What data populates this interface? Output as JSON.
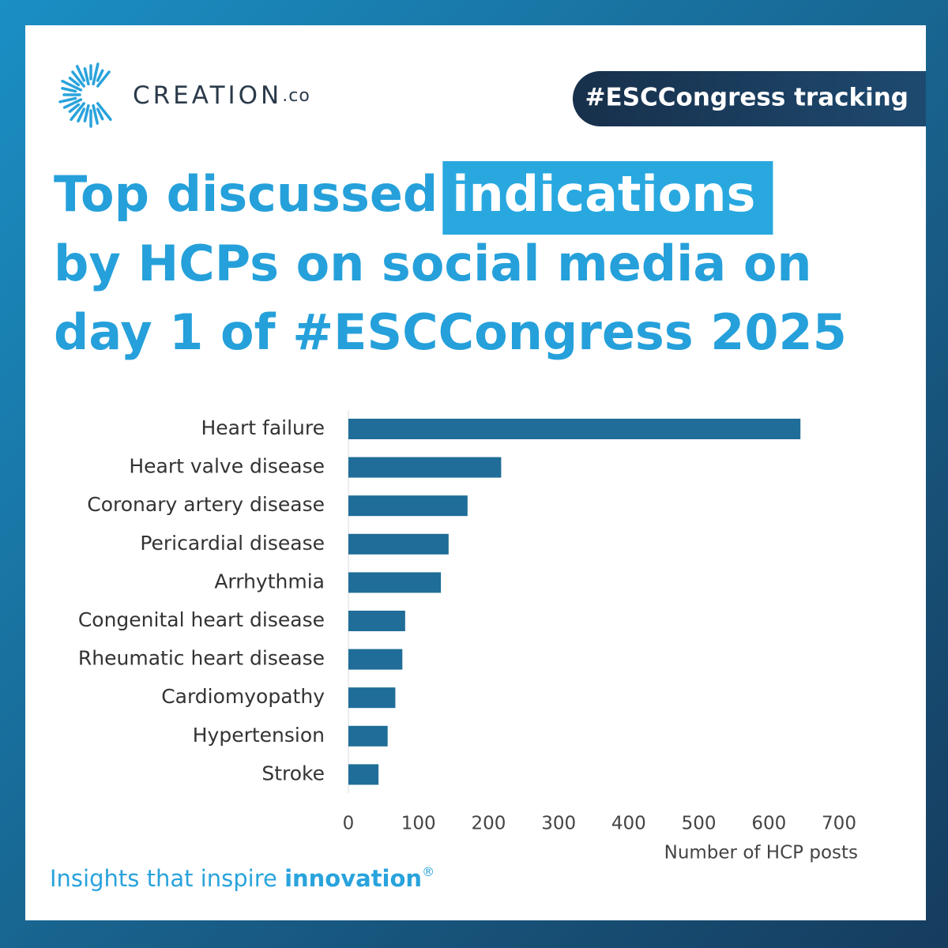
{
  "brand": {
    "name": "CREATION",
    "suffix": ".co"
  },
  "tag": "#ESCCongress tracking",
  "tagline": {
    "text": "Insights that inspire",
    "emphasis": "innovation",
    "mark": "®"
  },
  "chart_data": {
    "type": "bar",
    "orientation": "horizontal",
    "title": {
      "start": "Top discussed",
      "highlight": "indications",
      "lines": [
        "by HCPs on social media on",
        "day 1 of #ESCCongress 2025"
      ]
    },
    "categories": [
      "Heart failure",
      "Heart valve disease",
      "Coronary artery disease",
      "Pericardial disease",
      "Arrhythmia",
      "Congenital heart disease",
      "Rheumatic heart disease",
      "Cardiomyopathy",
      "Hypertension",
      "Stroke"
    ],
    "values": [
      645,
      218,
      170,
      143,
      132,
      81,
      77,
      67,
      56,
      43
    ],
    "color": "#1f6d98",
    "xlim": [
      0,
      700
    ],
    "xticks": [
      0,
      100,
      200,
      300,
      400,
      500,
      600,
      700
    ],
    "xlabel": "Number of HCP posts"
  }
}
